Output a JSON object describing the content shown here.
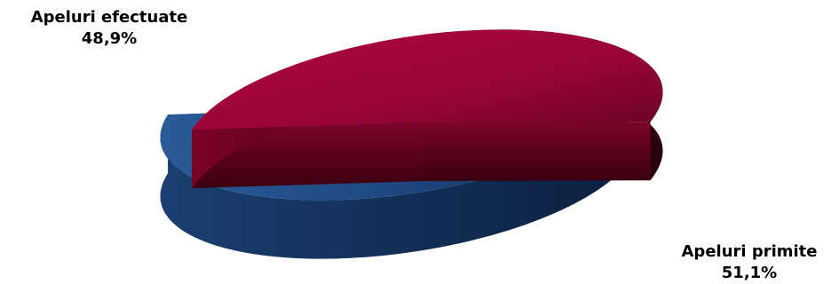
{
  "chart_data": {
    "type": "pie",
    "three_d": true,
    "exploded": true,
    "title": "",
    "slices": [
      {
        "label": "Apeluri efectuate",
        "value": 48.9,
        "value_label": "48,9%",
        "color": "#24528f"
      },
      {
        "label": "Apeluri primite",
        "value": 51.1,
        "value_label": "51,1%",
        "color": "#a6063a"
      }
    ]
  }
}
